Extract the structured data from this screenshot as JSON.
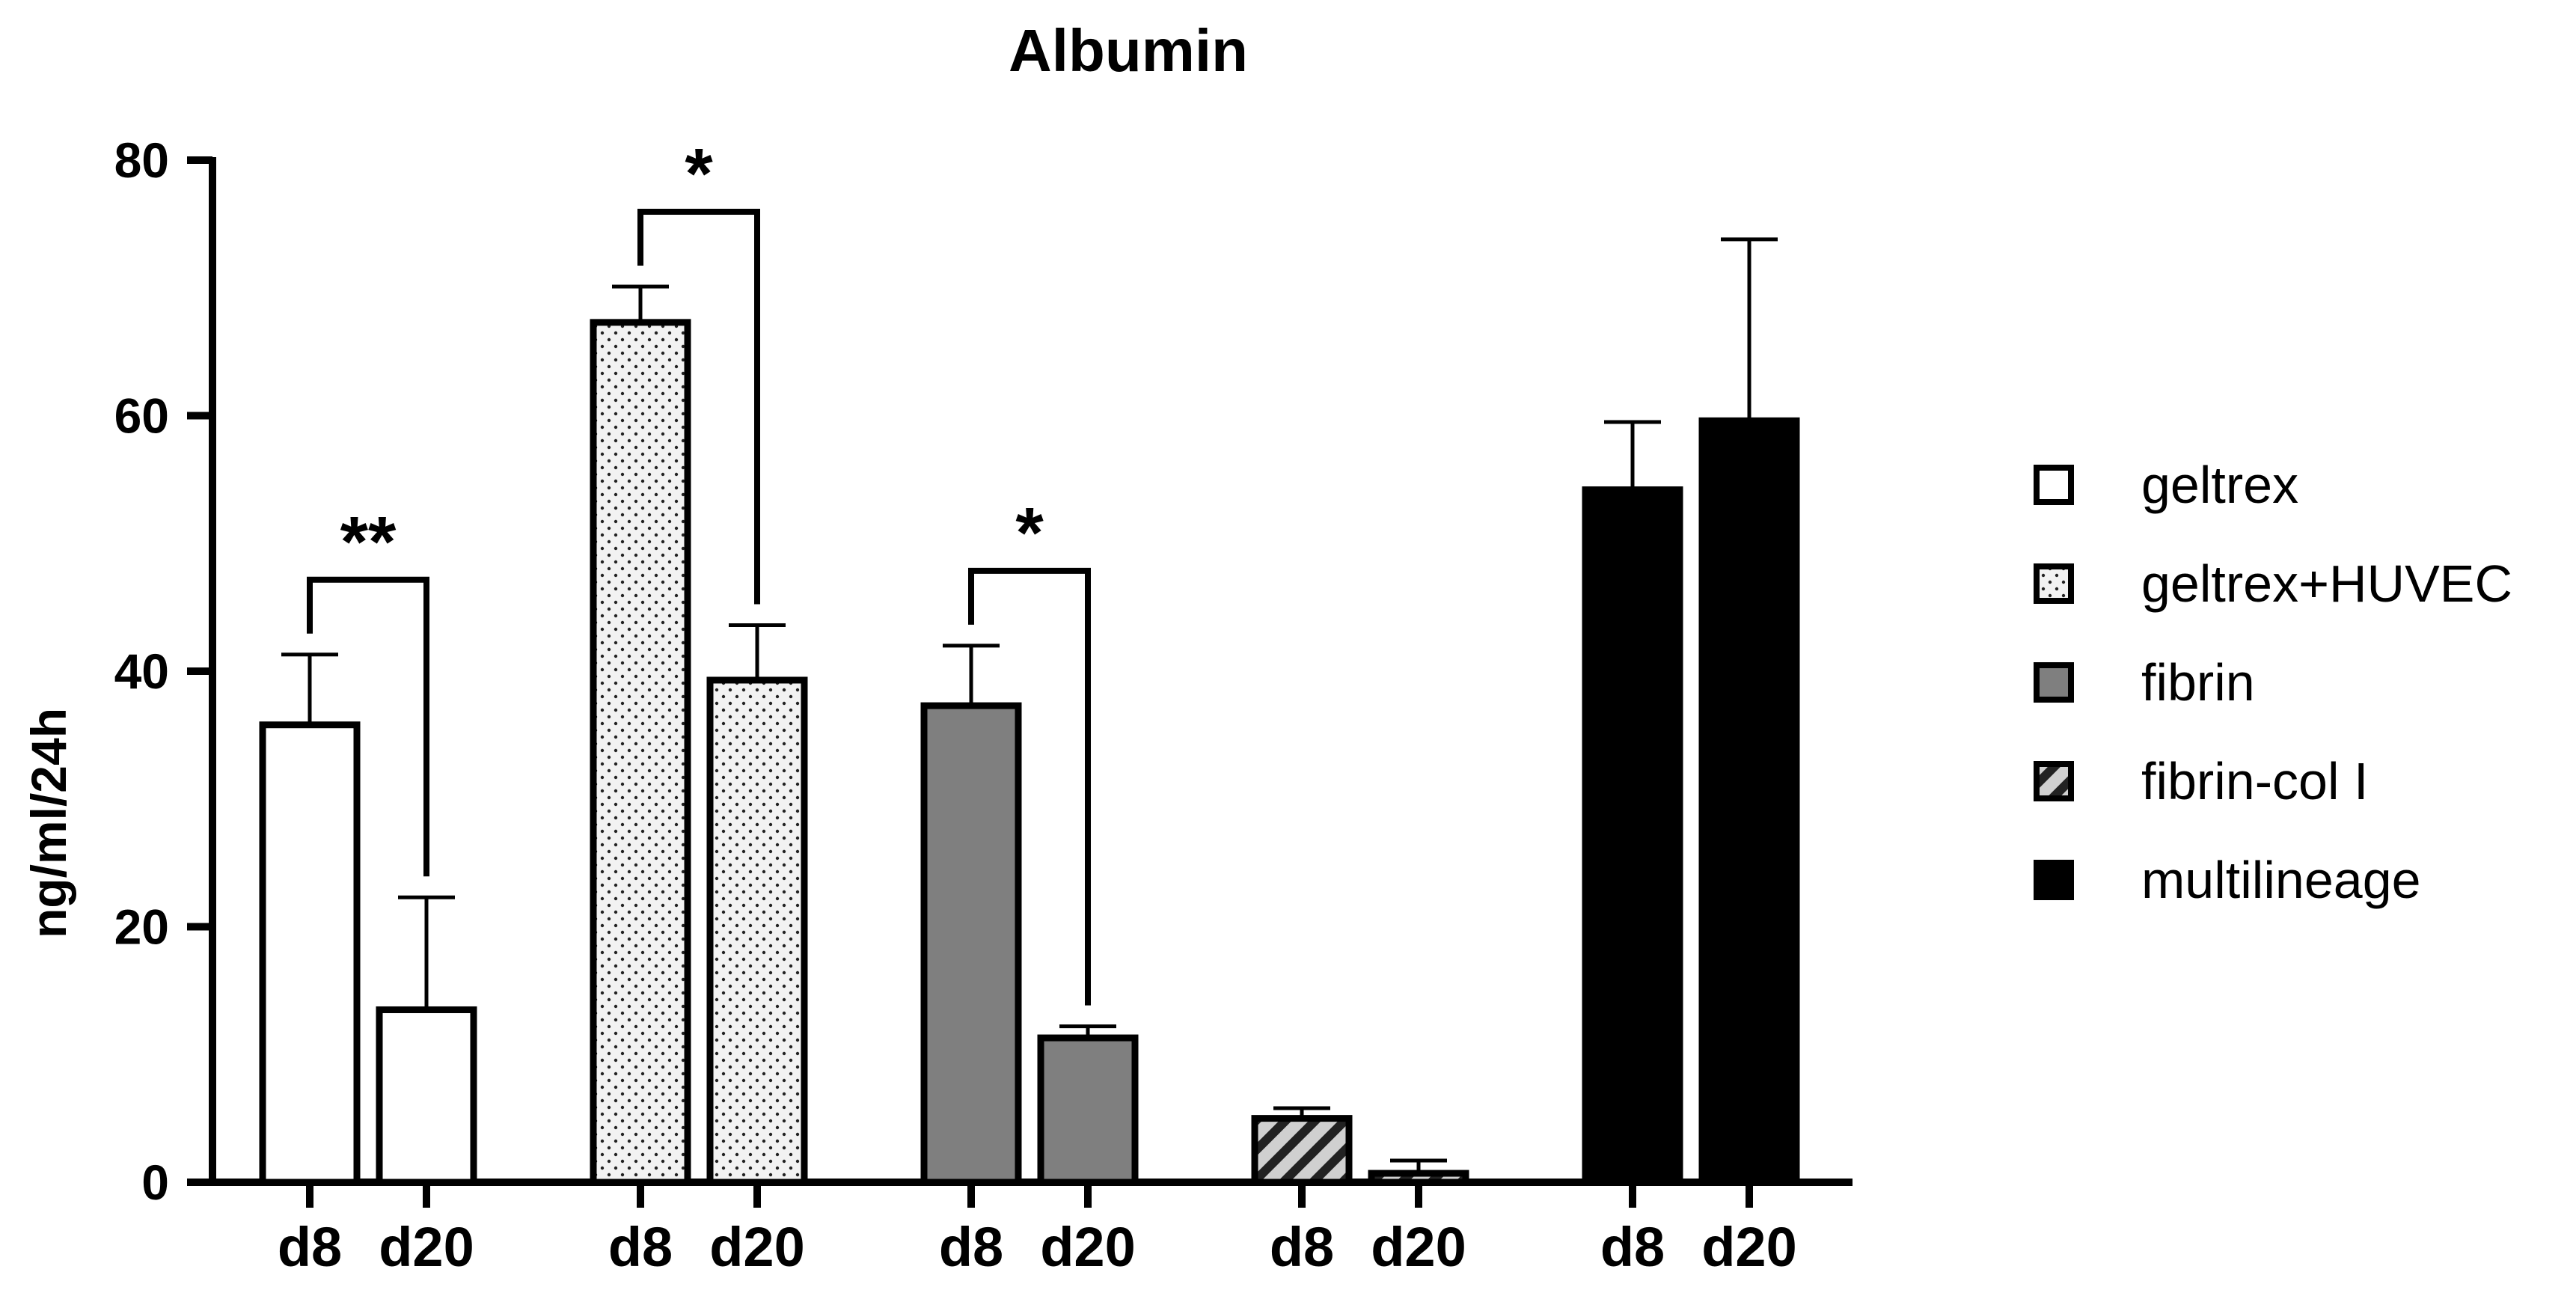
{
  "chart_data": {
    "type": "bar",
    "title": "Albumin",
    "ylabel": "ng/ml/24h",
    "xlabel": "",
    "ylim": [
      0,
      80
    ],
    "yticks": [
      0,
      20,
      40,
      60,
      80
    ],
    "timepoints": [
      "d8",
      "d20"
    ],
    "legend_position": "right",
    "groups": [
      {
        "name": "geltrex",
        "pattern": "white",
        "values": [
          35.8,
          13.5
        ],
        "errors": [
          5.5,
          8.8
        ]
      },
      {
        "name": "geltrex+HUVEC",
        "pattern": "dotted",
        "values": [
          67.3,
          39.3
        ],
        "errors": [
          2.8,
          4.3
        ]
      },
      {
        "name": "fibrin",
        "pattern": "gray",
        "values": [
          37.3,
          11.3
        ],
        "errors": [
          4.7,
          0.9
        ]
      },
      {
        "name": "fibrin-col I",
        "pattern": "hatched",
        "values": [
          5.0,
          0.7
        ],
        "errors": [
          0.8,
          1.0
        ]
      },
      {
        "name": "multilineage",
        "pattern": "black",
        "values": [
          54.2,
          59.6
        ],
        "errors": [
          5.3,
          14.2
        ]
      }
    ],
    "significance": [
      {
        "group": "geltrex",
        "label": "**"
      },
      {
        "group": "geltrex+HUVEC",
        "label": "*"
      },
      {
        "group": "fibrin",
        "label": "*"
      }
    ]
  },
  "colors": {
    "white": "#ffffff",
    "dotted_bg": "#f2f2f2",
    "gray": "#7f7f7f",
    "hatched_bg": "#d0d0d0",
    "black": "#000000"
  }
}
